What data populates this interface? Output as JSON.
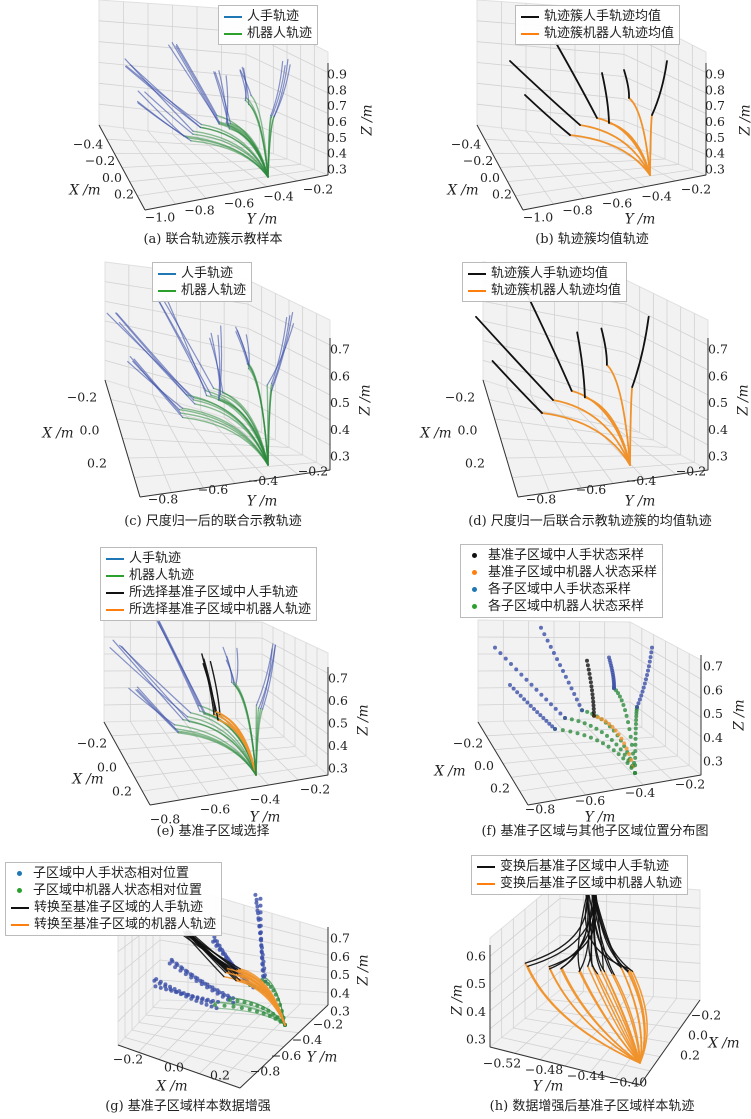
{
  "colors": {
    "human": "#3b4fa8",
    "robot": "#2e8b3e",
    "mean_human": "#111111",
    "mean_robot": "#f0922b",
    "legend_blue": "#1f77b4",
    "legend_green": "#2ca02c",
    "legend_orange": "#ff7f0e",
    "legend_black": "#111111"
  },
  "panels": [
    {
      "id": "a",
      "caption": "(a) 联合轨迹簇示教样本",
      "legend": [
        {
          "label": "人手轨迹",
          "color": "#1f77b4",
          "kind": "line"
        },
        {
          "label": "机器人轨迹",
          "color": "#2ca02c",
          "kind": "line"
        }
      ],
      "axes": {
        "x": {
          "label": "X /m",
          "ticks": [
            "−0.4",
            "−0.2",
            "0.0",
            "0.2"
          ]
        },
        "y": {
          "label": "Y /m",
          "ticks": [
            "−1.0",
            "−0.8",
            "−0.6",
            "−0.4",
            "−0.2"
          ]
        },
        "z": {
          "label": "Z /m",
          "ticks": [
            "0.9",
            "0.8",
            "0.7",
            "0.6",
            "0.5",
            "0.4",
            "0.3"
          ]
        }
      }
    },
    {
      "id": "b",
      "caption": "(b) 轨迹簇均值轨迹",
      "legend": [
        {
          "label": "轨迹簇人手轨迹均值",
          "color": "#111111",
          "kind": "line"
        },
        {
          "label": "轨迹簇机器人轨迹均值",
          "color": "#ff7f0e",
          "kind": "line"
        }
      ],
      "axes": {
        "x": {
          "label": "X /m",
          "ticks": [
            "−0.4",
            "−0.2",
            "0.0",
            "0.2"
          ]
        },
        "y": {
          "label": "Y /m",
          "ticks": [
            "−1.0",
            "−0.8",
            "−0.6",
            "−0.4",
            "−0.2"
          ]
        },
        "z": {
          "label": "Z /m",
          "ticks": [
            "0.9",
            "0.8",
            "0.7",
            "0.6",
            "0.5",
            "0.4",
            "0.3"
          ]
        }
      }
    },
    {
      "id": "c",
      "caption": "(c) 尺度归一后的联合示教轨迹",
      "legend": [
        {
          "label": "人手轨迹",
          "color": "#1f77b4",
          "kind": "line"
        },
        {
          "label": "机器人轨迹",
          "color": "#2ca02c",
          "kind": "line"
        }
      ],
      "axes": {
        "x": {
          "label": "X /m",
          "ticks": [
            "−0.2",
            "0.0",
            "0.2"
          ]
        },
        "y": {
          "label": "Y /m",
          "ticks": [
            "−0.8",
            "−0.6",
            "−0.4",
            "−0.2"
          ]
        },
        "z": {
          "label": "Z /m",
          "ticks": [
            "0.7",
            "0.6",
            "0.5",
            "0.4",
            "0.3"
          ]
        }
      }
    },
    {
      "id": "d",
      "caption": "(d) 尺度归一后联合示教轨迹簇的均值轨迹",
      "legend": [
        {
          "label": "轨迹簇人手轨迹均值",
          "color": "#111111",
          "kind": "line"
        },
        {
          "label": "轨迹簇机器人轨迹均值",
          "color": "#ff7f0e",
          "kind": "line"
        }
      ],
      "axes": {
        "x": {
          "label": "X /m",
          "ticks": [
            "−0.2",
            "0.0",
            "0.2"
          ]
        },
        "y": {
          "label": "Y /m",
          "ticks": [
            "−0.8",
            "−0.6",
            "−0.4",
            "−0.2"
          ]
        },
        "z": {
          "label": "Z /m",
          "ticks": [
            "0.7",
            "0.6",
            "0.5",
            "0.4",
            "0.3"
          ]
        }
      }
    },
    {
      "id": "e",
      "caption": "(e) 基准子区域选择",
      "legend": [
        {
          "label": "人手轨迹",
          "color": "#1f77b4",
          "kind": "line"
        },
        {
          "label": "机器人轨迹",
          "color": "#2ca02c",
          "kind": "line"
        },
        {
          "label": "所选择基准子区域中人手轨迹",
          "color": "#111111",
          "kind": "line"
        },
        {
          "label": "所选择基准子区域中机器人轨迹",
          "color": "#ff7f0e",
          "kind": "line"
        }
      ],
      "axes": {
        "x": {
          "label": "X /m",
          "ticks": [
            "−0.2",
            "0.0",
            "0.2"
          ]
        },
        "y": {
          "label": "Y /m",
          "ticks": [
            "−0.8",
            "−0.6",
            "−0.4",
            "−0.2"
          ]
        },
        "z": {
          "label": "Z /m",
          "ticks": [
            "0.7",
            "0.6",
            "0.5",
            "0.4",
            "0.3"
          ]
        }
      }
    },
    {
      "id": "f",
      "caption": "(f) 基准子区域与其他子区域位置分布图",
      "legend": [
        {
          "label": "基准子区域中人手状态采样",
          "color": "#111111",
          "kind": "dot"
        },
        {
          "label": "基准子区域中机器人状态采样",
          "color": "#ff7f0e",
          "kind": "dot"
        },
        {
          "label": "各子区域中人手状态采样",
          "color": "#1f77b4",
          "kind": "dot"
        },
        {
          "label": "各子区域中机器人状态采样",
          "color": "#2ca02c",
          "kind": "dot"
        }
      ],
      "axes": {
        "x": {
          "label": "X /m",
          "ticks": [
            "−0.2",
            "0.0",
            "0.2"
          ]
        },
        "y": {
          "label": "Y /m",
          "ticks": [
            "−0.8",
            "−0.6",
            "−0.4",
            "−0.2"
          ]
        },
        "z": {
          "label": "Z /m",
          "ticks": [
            "0.7",
            "0.6",
            "0.5",
            "0.4",
            "0.3"
          ]
        }
      }
    },
    {
      "id": "g",
      "caption": "(g) 基准子区域样本数据增强",
      "legend": [
        {
          "label": "子区域中人手状态相对位置",
          "color": "#1f77b4",
          "kind": "dot"
        },
        {
          "label": "子区域中机器人状态相对位置",
          "color": "#2ca02c",
          "kind": "dot"
        },
        {
          "label": "转换至基准子区域的人手轨迹",
          "color": "#111111",
          "kind": "line"
        },
        {
          "label": "转换至基准子区域的机器人轨迹",
          "color": "#ff7f0e",
          "kind": "line"
        }
      ],
      "axes": {
        "x": {
          "label": "X /m",
          "ticks": [
            "−0.2",
            "0.0",
            "0.2"
          ]
        },
        "y": {
          "label": "Y /m",
          "ticks": [
            "−0.2",
            "−0.4",
            "−0.6",
            "−0.8"
          ]
        },
        "z": {
          "label": "Z /m",
          "ticks": [
            "0.7",
            "0.6",
            "0.5",
            "0.4",
            "0.3"
          ]
        }
      }
    },
    {
      "id": "h",
      "caption": "(h) 数据增强后基准子区域样本轨迹",
      "legend": [
        {
          "label": "变换后基准子区域中人手轨迹",
          "color": "#111111",
          "kind": "line"
        },
        {
          "label": "变换后基准子区域中机器人轨迹",
          "color": "#ff7f0e",
          "kind": "line"
        }
      ],
      "axes": {
        "x": {
          "label": "X /m",
          "ticks": [
            "−0.2",
            "0.0",
            "0.2"
          ]
        },
        "y": {
          "label": "Y /m",
          "ticks": [
            "−0.52",
            "−0.48",
            "−0.44",
            "−0.40"
          ]
        },
        "z": {
          "label": "Z /m",
          "ticks": [
            "0.6",
            "0.5",
            "0.4",
            "0.3"
          ]
        }
      }
    }
  ],
  "chart_data": [
    {
      "type": "line",
      "panel": "a",
      "dims": 3,
      "xlabel": "X /m",
      "ylabel": "Y /m",
      "zlabel": "Z /m",
      "series": [
        {
          "name": "人手轨迹"
        },
        {
          "name": "机器人轨迹"
        }
      ],
      "zlim": [
        0.3,
        0.9
      ],
      "grid": true,
      "legend": "top-right"
    },
    {
      "type": "line",
      "panel": "b",
      "dims": 3,
      "series": [
        {
          "name": "轨迹簇人手轨迹均值"
        },
        {
          "name": "轨迹簇机器人轨迹均值"
        }
      ],
      "zlim": [
        0.3,
        0.9
      ],
      "grid": true,
      "legend": "top-right"
    },
    {
      "type": "line",
      "panel": "c",
      "dims": 3,
      "zlim": [
        0.3,
        0.7
      ],
      "grid": true,
      "legend": "top"
    },
    {
      "type": "line",
      "panel": "d",
      "dims": 3,
      "zlim": [
        0.3,
        0.7
      ],
      "grid": true,
      "legend": "top"
    },
    {
      "type": "line",
      "panel": "e",
      "dims": 3,
      "zlim": [
        0.3,
        0.7
      ],
      "grid": true,
      "legend": "top"
    },
    {
      "type": "scatter",
      "panel": "f",
      "dims": 3,
      "zlim": [
        0.3,
        0.7
      ],
      "grid": true,
      "legend": "top"
    },
    {
      "type": "scatter",
      "panel": "g",
      "dims": 3,
      "zlim": [
        0.3,
        0.7
      ],
      "grid": true,
      "legend": "top-left"
    },
    {
      "type": "line",
      "panel": "h",
      "dims": 3,
      "zlim": [
        0.3,
        0.6
      ],
      "ylim": [
        -0.52,
        -0.4
      ],
      "grid": true,
      "legend": "top"
    }
  ]
}
